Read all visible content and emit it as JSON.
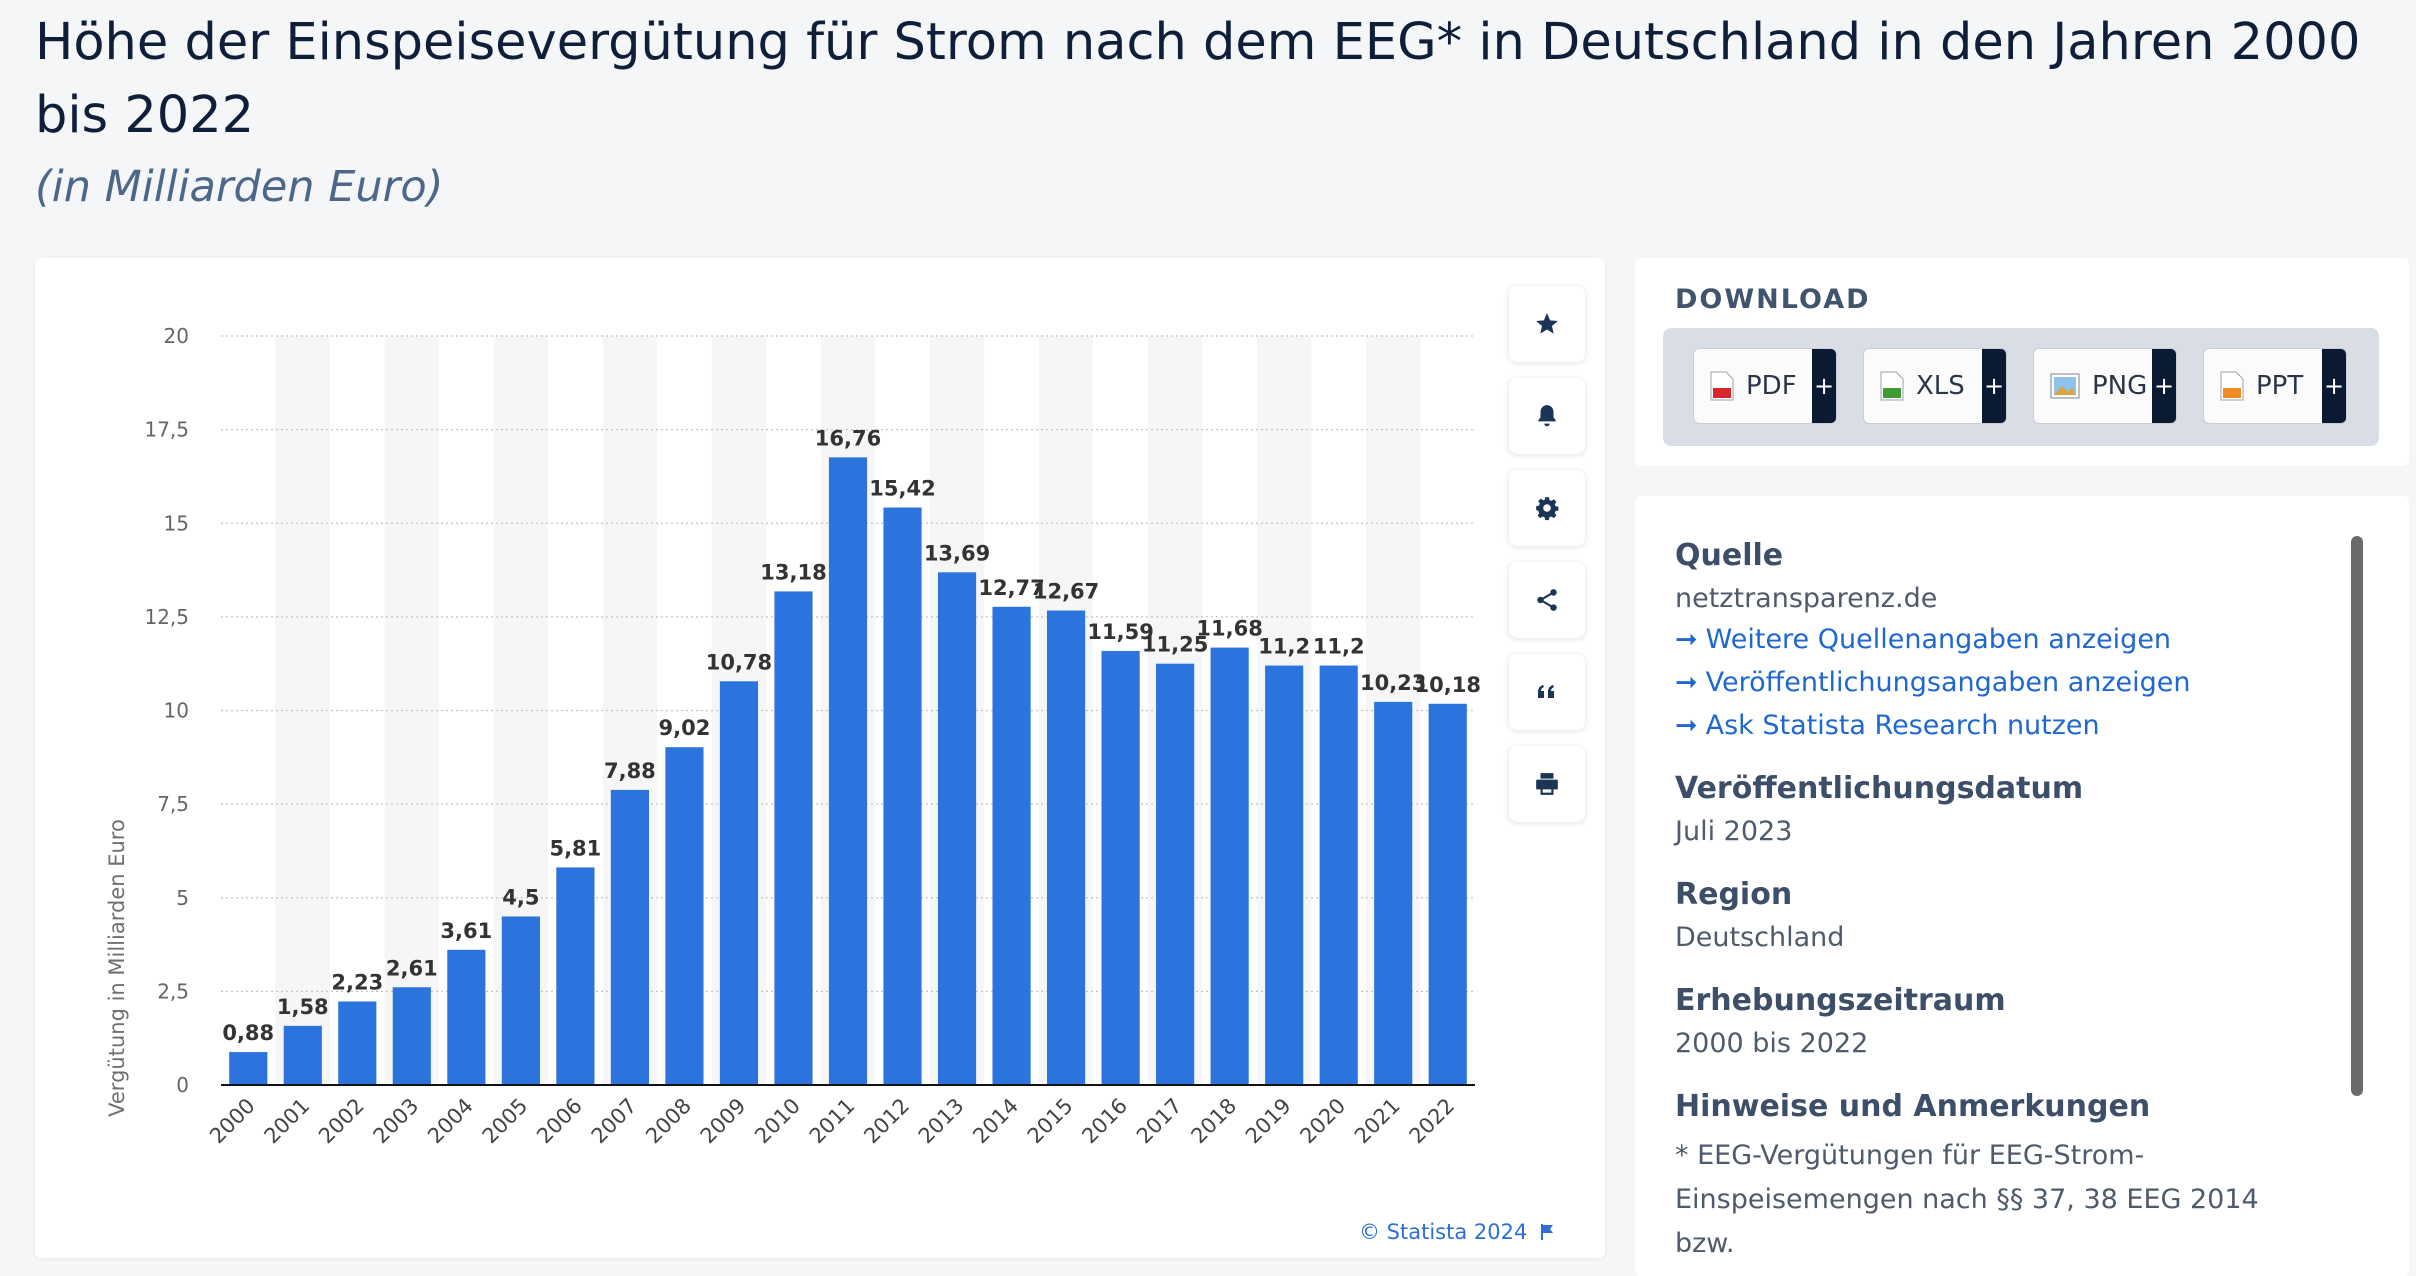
{
  "page": {
    "title": "Höhe der Einspeisevergütung für Strom nach dem EEG* in Deutschland in den Jahren 2000 bis 2022",
    "subtitle": "(in Milliarden Euro)",
    "credit": "© Statista 2024"
  },
  "chart_data": {
    "type": "bar",
    "title": "Höhe der Einspeisevergütung für Strom nach dem EEG* in Deutschland in den Jahren 2000 bis 2022",
    "subtitle": "(in Milliarden Euro)",
    "xlabel": "",
    "ylabel": "Vergütung in Milliarden Euro",
    "categories": [
      "2000",
      "2001",
      "2002",
      "2003",
      "2004",
      "2005",
      "2006",
      "2007",
      "2008",
      "2009",
      "2010",
      "2011",
      "2012",
      "2013",
      "2014",
      "2015",
      "2016",
      "2017",
      "2018",
      "2019",
      "2020",
      "2021",
      "2022"
    ],
    "values": [
      0.88,
      1.58,
      2.23,
      2.61,
      3.61,
      4.5,
      5.81,
      7.88,
      9.02,
      10.78,
      13.18,
      16.76,
      15.42,
      13.69,
      12.77,
      12.67,
      11.59,
      11.25,
      11.68,
      11.2,
      11.2,
      10.23,
      10.18
    ],
    "value_labels": [
      "0,88",
      "1,58",
      "2,23",
      "2,61",
      "3,61",
      "4,5",
      "5,81",
      "7,88",
      "9,02",
      "10,78",
      "13,18",
      "16,76",
      "15,42",
      "13,69",
      "12,77",
      "12,67",
      "11,59",
      "11,25",
      "11,68",
      "11,2",
      "11,2",
      "10,23",
      "10,18"
    ],
    "ylim": [
      0,
      20
    ],
    "yticks": [
      "0",
      "2,5",
      "5",
      "7,5",
      "10",
      "12,5",
      "15",
      "17,5",
      "20"
    ],
    "grid": true,
    "bar_color": "#2b74dd"
  },
  "toolbar": {
    "icons": [
      "star-icon",
      "bell-icon",
      "gear-icon",
      "share-icon",
      "quote-icon",
      "print-icon"
    ]
  },
  "download": {
    "heading": "DOWNLOAD",
    "buttons": [
      {
        "label": "PDF",
        "plus": "+"
      },
      {
        "label": "XLS",
        "plus": "+"
      },
      {
        "label": "PNG",
        "plus": "+"
      },
      {
        "label": "PPT",
        "plus": "+"
      }
    ]
  },
  "info": {
    "source_heading": "Quelle",
    "source_value": "netztransparenz.de",
    "links": [
      "Weitere Quellenangaben anzeigen",
      "Veröffentlichungsangaben anzeigen",
      "Ask Statista Research nutzen"
    ],
    "pub_heading": "Veröffentlichungsdatum",
    "pub_value": "Juli 2023",
    "region_heading": "Region",
    "region_value": "Deutschland",
    "period_heading": "Erhebungszeitraum",
    "period_value": "2000 bis 2022",
    "notes_heading": "Hinweise und Anmerkungen",
    "notes_line1": "* EEG-Vergütungen für EEG-Strom-",
    "notes_line2": "Einspeisemengen nach §§ 37, 38 EEG 2014 bzw."
  }
}
